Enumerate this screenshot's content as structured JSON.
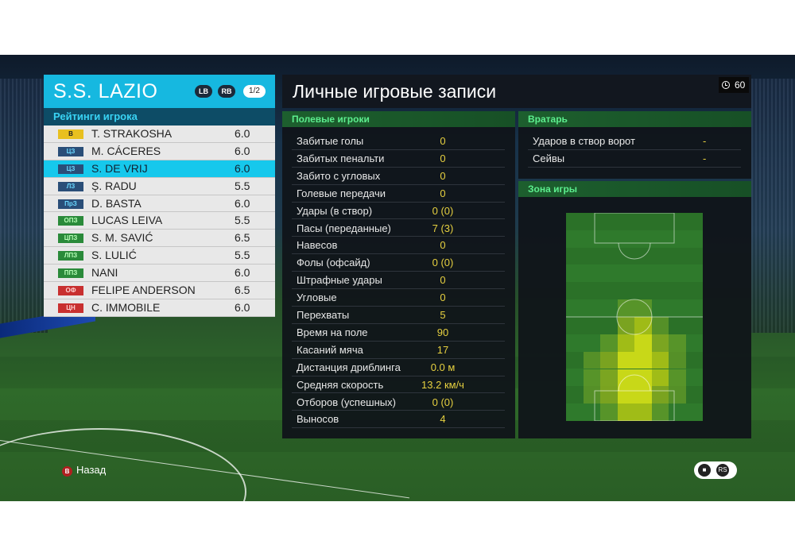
{
  "team": {
    "name": "S.S. LAZIO",
    "lb_label": "LB",
    "rb_label": "RB",
    "page_indicator": "1/2",
    "accent_color": "#16b8e0"
  },
  "ratings": {
    "title": "Рейтинги игрока",
    "players": [
      {
        "pos": "В",
        "pos_color": "#e8c020",
        "pos_text_color": "#222",
        "name": "T. STRAKOSHA",
        "rating": "6.0"
      },
      {
        "pos": "ЦЗ",
        "pos_color": "#2a4e78",
        "pos_text_color": "#6ad8ff",
        "name": "M. CÁCERES",
        "rating": "6.0"
      },
      {
        "pos": "ЦЗ",
        "pos_color": "#2a4e78",
        "pos_text_color": "#6ad8ff",
        "name": "S. DE VRIJ",
        "rating": "6.0",
        "selected": true
      },
      {
        "pos": "ЛЗ",
        "pos_color": "#2a4e78",
        "pos_text_color": "#6ad8ff",
        "name": "Ș. RADU",
        "rating": "5.5"
      },
      {
        "pos": "ПрЗ",
        "pos_color": "#2a4e78",
        "pos_text_color": "#6ad8ff",
        "name": "D. BASTA",
        "rating": "6.0"
      },
      {
        "pos": "ОПЗ",
        "pos_color": "#2a8a3a",
        "pos_text_color": "#b8ffb8",
        "name": "LUCAS LEIVA",
        "rating": "5.5"
      },
      {
        "pos": "ЦПЗ",
        "pos_color": "#2a8a3a",
        "pos_text_color": "#b8ffb8",
        "name": "S. M. SAVIĆ",
        "rating": "6.5"
      },
      {
        "pos": "ЛПЗ",
        "pos_color": "#2a8a3a",
        "pos_text_color": "#b8ffb8",
        "name": "S. LULIĆ",
        "rating": "5.5"
      },
      {
        "pos": "ППЗ",
        "pos_color": "#2a8a3a",
        "pos_text_color": "#b8ffb8",
        "name": "NANI",
        "rating": "6.0"
      },
      {
        "pos": "ОФ",
        "pos_color": "#c83030",
        "pos_text_color": "#ffd0d0",
        "name": "FELIPE ANDERSON",
        "rating": "6.5"
      },
      {
        "pos": "ЦН",
        "pos_color": "#c83030",
        "pos_text_color": "#ffd0d0",
        "name": "C. IMMOBILE",
        "rating": "6.0"
      }
    ]
  },
  "main": {
    "title": "Личные игровые записи",
    "timer": "60"
  },
  "field_players": {
    "title": "Полевые игроки",
    "stats": [
      {
        "label": "Забитые голы",
        "value": "0"
      },
      {
        "label": "Забитых пенальти",
        "value": "0"
      },
      {
        "label": "Забито с угловых",
        "value": "0"
      },
      {
        "label": "Голевые передачи",
        "value": "0"
      },
      {
        "label": "Удары (в створ)",
        "value": "0 (0)"
      },
      {
        "label": "Пасы (переданные)",
        "value": "7 (3)"
      },
      {
        "label": "Навесов",
        "value": "0"
      },
      {
        "label": "Фолы (офсайд)",
        "value": "0 (0)"
      },
      {
        "label": "Штрафные удары",
        "value": "0"
      },
      {
        "label": "Угловые",
        "value": "0"
      },
      {
        "label": "Перехваты",
        "value": "5"
      },
      {
        "label": "Время на поле",
        "value": "90"
      },
      {
        "label": "Касаний мяча",
        "value": "17"
      },
      {
        "label": "Дистанция дриблинга",
        "value": "0.0 м"
      },
      {
        "label": "Средняя скорость",
        "value": "13.2 км/ч"
      },
      {
        "label": "Отборов (успешных)",
        "value": "0 (0)"
      },
      {
        "label": "Выносов",
        "value": "4"
      }
    ]
  },
  "goalkeeper": {
    "title": "Вратарь",
    "stats": [
      {
        "label": "Ударов в створ ворот",
        "value": "-"
      },
      {
        "label": "Сейвы",
        "value": "-"
      }
    ]
  },
  "zone": {
    "title": "Зона игры",
    "heat_levels": [
      [
        0,
        0,
        0,
        0,
        0,
        0,
        0,
        0
      ],
      [
        0,
        0,
        0,
        0,
        0,
        0,
        0,
        0
      ],
      [
        0,
        0,
        0,
        0,
        0,
        0,
        0,
        0
      ],
      [
        0,
        0,
        0,
        0,
        0,
        0,
        0,
        0
      ],
      [
        0,
        0,
        0,
        0,
        0,
        0,
        0,
        0
      ],
      [
        0,
        0,
        0,
        1,
        1,
        0,
        0,
        0
      ],
      [
        0,
        0,
        0,
        2,
        3,
        1,
        0,
        0
      ],
      [
        0,
        0,
        1,
        3,
        4,
        2,
        1,
        0
      ],
      [
        0,
        1,
        2,
        4,
        4,
        3,
        1,
        0
      ],
      [
        0,
        1,
        2,
        4,
        4,
        3,
        1,
        0
      ],
      [
        0,
        1,
        2,
        4,
        4,
        2,
        1,
        0
      ],
      [
        0,
        0,
        1,
        3,
        3,
        1,
        0,
        0
      ]
    ]
  },
  "footer": {
    "back_label": "Назад",
    "back_key": "B",
    "hint_key": "RS"
  }
}
